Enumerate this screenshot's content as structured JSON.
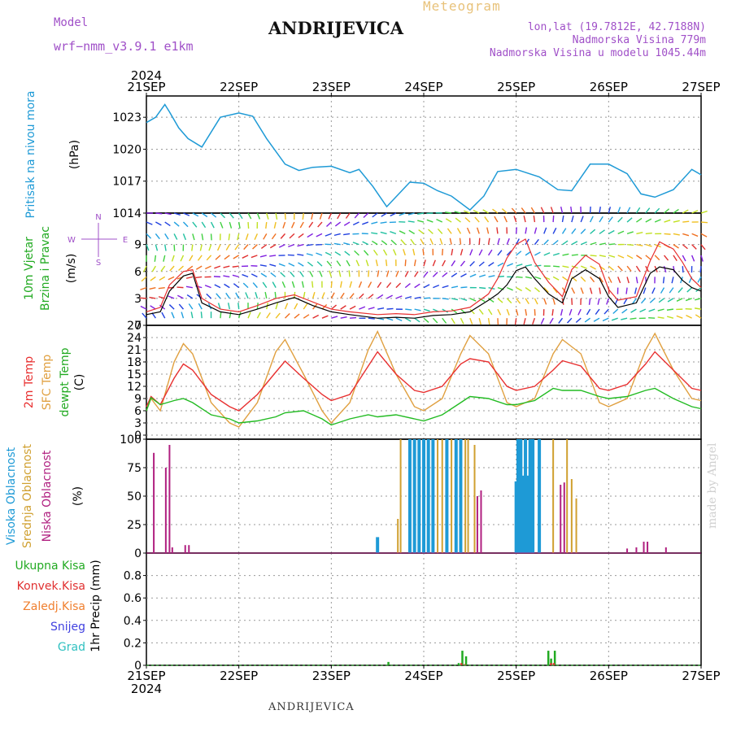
{
  "header": {
    "title": "ANDRIJEVICA",
    "meteogram_label": "Meteogram",
    "model_label": "Model",
    "model_name": "wrf−nmm_v3.9.1  e1km",
    "lonlat": "lon,lat (19.7812E, 42.7188N)",
    "altitude": "Nadmorska Visina 779m",
    "model_altitude": "Nadmorska Visina u modelu 1045.44m"
  },
  "footer": {
    "title": "ANDRIJEVICA",
    "credit": "made by Angel"
  },
  "time_axis": {
    "year": "2024",
    "labels": [
      "21SEP",
      "22SEP",
      "23SEP",
      "24SEP",
      "25SEP",
      "26SEP",
      "27SEP"
    ]
  },
  "wind_compass": {
    "w": "W",
    "e": "E",
    "n": "N",
    "s": "S"
  },
  "colors": {
    "pressure": "#1e9ad6",
    "temp2m": "#e83030",
    "sfc_temp": "#e0a040",
    "dewpt": "#22bb22",
    "high_cloud": "#1e9ad6",
    "mid_cloud": "#d0a030",
    "low_cloud": "#b02080",
    "total_precip": "#22aa22",
    "conv_precip": "#e03030",
    "frozen_precip": "#f08030",
    "snow": "#4040e0",
    "hail": "#30c0c0"
  },
  "chart_data": [
    {
      "type": "line",
      "ylabel": "Pritisak na nivou mora",
      "yunit": "(hPa)",
      "ylim": [
        1014,
        1025
      ],
      "yticks": [
        1014,
        1017,
        1020,
        1023
      ],
      "grid": true,
      "x_days": [
        0,
        0.1,
        0.2,
        0.25,
        0.35,
        0.45,
        0.6,
        0.8,
        1.0,
        1.15,
        1.3,
        1.5,
        1.65,
        1.8,
        2.0,
        2.2,
        2.3,
        2.45,
        2.6,
        2.85,
        3.0,
        3.15,
        3.3,
        3.5,
        3.65,
        3.8,
        4.0,
        4.25,
        4.45,
        4.6,
        4.8,
        5.0,
        5.2,
        5.35,
        5.5,
        5.7,
        5.9,
        6.0
      ],
      "series": [
        {
          "values": [
            1022.5,
            1023,
            1024.2,
            1023.5,
            1022,
            1021,
            1020.2,
            1023,
            1023.4,
            1023.1,
            1021,
            1018.6,
            1018,
            1018.3,
            1018.4,
            1017.8,
            1018.1,
            1016.5,
            1014.6,
            1016.9,
            1016.8,
            1016.1,
            1015.6,
            1014.3,
            1015.6,
            1017.9,
            1018.1,
            1017.4,
            1016.2,
            1016.1,
            1018.6,
            1018.6,
            1017.7,
            1015.8,
            1015.5,
            1016.2,
            1018.1,
            1017.6
          ]
        }
      ]
    },
    {
      "type": "line",
      "ylabel": "10m Vjetar Brzina i Pravac",
      "yunit": "(m/s)",
      "ylim": [
        0,
        12.5
      ],
      "yticks": [
        0,
        3,
        6,
        9
      ],
      "grid": true,
      "x_days": [
        0,
        0.15,
        0.25,
        0.4,
        0.5,
        0.6,
        0.8,
        1.0,
        1.2,
        1.4,
        1.6,
        1.8,
        2.0,
        2.2,
        2.5,
        2.7,
        2.9,
        3.1,
        3.3,
        3.5,
        3.7,
        3.8,
        3.9,
        4.0,
        4.1,
        4.2,
        4.35,
        4.5,
        4.6,
        4.75,
        4.9,
        5.0,
        5.1,
        5.3,
        5.45,
        5.55,
        5.7,
        5.8,
        5.9,
        6.0
      ],
      "series": [
        {
          "name": "speed",
          "values": [
            1.2,
            1.5,
            3.8,
            5.5,
            5.8,
            2.5,
            1.5,
            1.2,
            1.8,
            2.5,
            3.1,
            2.2,
            1.5,
            1.2,
            0.8,
            0.9,
            0.8,
            1.1,
            1.2,
            1.5,
            2.8,
            3.5,
            4.5,
            6.1,
            6.5,
            5.2,
            3.5,
            2.5,
            5.2,
            6.2,
            5.2,
            3.2,
            2.0,
            2.5,
            5.8,
            6.5,
            6.2,
            5.0,
            4.2,
            3.8
          ]
        },
        {
          "name": "gust",
          "values": [
            1.5,
            2.0,
            4.5,
            6.0,
            6.2,
            3.0,
            1.8,
            1.5,
            2.2,
            3.0,
            3.4,
            2.6,
            1.8,
            1.5,
            1.2,
            1.3,
            1.2,
            1.5,
            1.6,
            2.0,
            3.5,
            5.2,
            7.5,
            9.0,
            9.6,
            7.0,
            4.8,
            3.2,
            6.2,
            7.8,
            6.8,
            4.0,
            2.8,
            3.2,
            7.2,
            9.3,
            8.5,
            7.0,
            5.2,
            4.2
          ]
        }
      ]
    },
    {
      "type": "line",
      "ylabel": "2m Temp / SFC Temp / dewpt Temp",
      "yunit": "(C)",
      "ylim": [
        -1,
        27
      ],
      "yticks": [
        0,
        3,
        6,
        9,
        12,
        15,
        18,
        21,
        24,
        27
      ],
      "grid": true,
      "x_days": [
        0,
        0.05,
        0.15,
        0.3,
        0.4,
        0.5,
        0.7,
        0.9,
        1.0,
        1.2,
        1.4,
        1.5,
        1.7,
        1.9,
        2.0,
        2.2,
        2.4,
        2.5,
        2.7,
        2.9,
        3.0,
        3.2,
        3.4,
        3.5,
        3.7,
        3.9,
        4.0,
        4.2,
        4.4,
        4.5,
        4.7,
        4.9,
        5.0,
        5.2,
        5.4,
        5.5,
        5.7,
        5.9,
        6.0
      ],
      "series": [
        {
          "name": "2m Temp",
          "values": [
            7,
            9.5,
            7.5,
            14,
            17.5,
            16,
            10,
            7,
            6,
            10,
            15.5,
            18.2,
            14,
            10,
            8.5,
            10,
            17,
            20.5,
            15,
            11,
            10.5,
            12,
            17.5,
            18.8,
            18,
            12,
            11,
            12,
            16,
            18.3,
            17,
            11.5,
            11,
            12.5,
            17.5,
            20.5,
            16,
            11.5,
            11
          ]
        },
        {
          "name": "SFC Temp",
          "values": [
            6,
            9,
            6,
            18,
            22.5,
            20,
            8,
            3,
            2,
            8,
            20.5,
            23.5,
            15,
            6,
            3,
            8,
            21,
            25.5,
            15,
            7,
            6,
            9,
            20,
            24.5,
            20,
            8,
            7,
            9,
            20,
            23.5,
            20,
            8,
            7,
            9,
            21,
            25,
            16,
            9,
            8.5
          ]
        },
        {
          "name": "dewpt Temp",
          "values": [
            6,
            9.2,
            7.5,
            8.5,
            9,
            8,
            5,
            4,
            3,
            3.5,
            4.5,
            5.5,
            6,
            4,
            2.5,
            4,
            5,
            4.5,
            5,
            4,
            3.5,
            5,
            8,
            9.5,
            9,
            7.5,
            7.5,
            8.5,
            11.5,
            11,
            11,
            9.5,
            9,
            9.5,
            11,
            11.5,
            9,
            7,
            6.5
          ]
        }
      ]
    },
    {
      "type": "bar",
      "ylabel": "Visoka Oblacnost / Srednja Oblacnost / Niska Oblacnost",
      "yunit": "(%)",
      "ylim": [
        0,
        100
      ],
      "yticks": [
        0,
        25,
        50,
        75,
        100
      ],
      "grid": true,
      "series": [
        {
          "name": "Visoka Oblacnost",
          "x_days": [
            2.5,
            2.85,
            2.9,
            2.95,
            3.0,
            3.05,
            3.1,
            3.25,
            3.35,
            3.4,
            4.0,
            4.02,
            4.05,
            4.08,
            4.1,
            4.12,
            4.15,
            4.18,
            4.25
          ],
          "values": [
            14,
            100,
            100,
            100,
            100,
            100,
            100,
            100,
            100,
            100,
            63,
            100,
            100,
            68,
            100,
            68,
            100,
            100,
            100
          ]
        },
        {
          "name": "Srednja Oblacnost",
          "x_days": [
            2.72,
            2.75,
            3.15,
            3.2,
            3.3,
            3.45,
            3.48,
            3.55,
            4.4,
            4.55,
            4.6,
            4.65
          ],
          "values": [
            30,
            100,
            100,
            100,
            100,
            100,
            100,
            95,
            100,
            100,
            65,
            48
          ]
        },
        {
          "name": "Niska Oblacnost",
          "x_days": [
            0.08,
            0.21,
            0.25,
            0.28,
            0.42,
            0.46,
            3.58,
            3.62,
            4.48,
            4.52,
            5.2,
            5.3,
            5.38,
            5.42,
            5.62
          ],
          "values": [
            88,
            75,
            95,
            5,
            7,
            7,
            50,
            55,
            60,
            62,
            4,
            5,
            10,
            10,
            5
          ]
        }
      ]
    },
    {
      "type": "bar",
      "ylabel": "1hr Precip",
      "yunit": "(mm)",
      "ylim": [
        0,
        1.0
      ],
      "yticks": [
        0,
        0.2,
        0.4,
        0.6,
        0.8
      ],
      "grid": true,
      "legend": [
        "Ukupna Kisa",
        "Konvek.Kisa",
        "Zaledj.Kisa",
        "Snijeg",
        "Grad"
      ],
      "series": [
        {
          "name": "Ukupna Kisa",
          "x_days": [
            2.62,
            3.38,
            3.42,
            3.46,
            4.35,
            4.38,
            4.42
          ],
          "values": [
            0.03,
            0.02,
            0.13,
            0.08,
            0.13,
            0.06,
            0.13
          ]
        },
        {
          "name": "Konvek.Kisa",
          "x_days": [
            3.4,
            3.44,
            4.37,
            4.4
          ],
          "values": [
            0.02,
            0.01,
            0.02,
            0.02
          ]
        }
      ]
    }
  ]
}
